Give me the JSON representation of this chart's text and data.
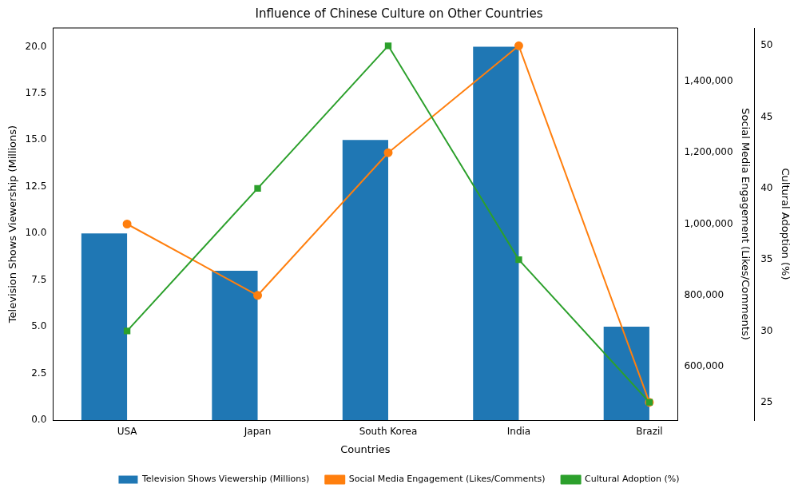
{
  "chart_data": {
    "type": "bar",
    "title": "Influence of Chinese Culture on Other Countries",
    "xlabel": "Countries",
    "ylabel": "Television Shows Viewership (Millions)",
    "y2label": "Social Media Engagement (Likes/Comments)",
    "y3label": "Cultural Adoption (%)",
    "categories": [
      "USA",
      "Japan",
      "South Korea",
      "India",
      "Brazil"
    ],
    "series": [
      {
        "name": "Television Shows Viewership (Millions)",
        "color": "#1f77b4",
        "values": [
          10,
          8,
          15,
          20,
          5
        ]
      },
      {
        "name": "Social Media Engagement (Likes/Comments)",
        "type": "line",
        "axis": "y2",
        "marker": "circle",
        "color": "#ff7f0e",
        "values": [
          1000000,
          800000,
          1200000,
          1500000,
          500000
        ]
      },
      {
        "name": "Cultural Adoption (%)",
        "type": "line",
        "axis": "y3",
        "marker": "square",
        "color": "#2ca02c",
        "values": [
          30,
          40,
          50,
          35,
          25
        ]
      }
    ],
    "ylim": [
      0,
      21
    ],
    "yticks": [
      {
        "value": 0,
        "label": "0.0"
      },
      {
        "value": 2.5,
        "label": "2.5"
      },
      {
        "value": 5,
        "label": "5.0"
      },
      {
        "value": 7.5,
        "label": "7.5"
      },
      {
        "value": 10,
        "label": "10.0"
      },
      {
        "value": 12.5,
        "label": "12.5"
      },
      {
        "value": 15,
        "label": "15.0"
      },
      {
        "value": 17.5,
        "label": "17.5"
      },
      {
        "value": 20,
        "label": "20.0"
      }
    ],
    "y2lim": [
      450000,
      1550000
    ],
    "y2ticks": [
      {
        "value": 600000,
        "label": "600,000"
      },
      {
        "value": 800000,
        "label": "800,000"
      },
      {
        "value": 1000000,
        "label": "1,000,000"
      },
      {
        "value": 1200000,
        "label": "1,200,000"
      },
      {
        "value": 1400000,
        "label": "1,400,000"
      }
    ],
    "y3lim": [
      23.75,
      51.25
    ],
    "y3ticks": [
      25,
      30,
      35,
      40,
      45,
      50
    ],
    "grid": false,
    "legend": "bottom"
  }
}
